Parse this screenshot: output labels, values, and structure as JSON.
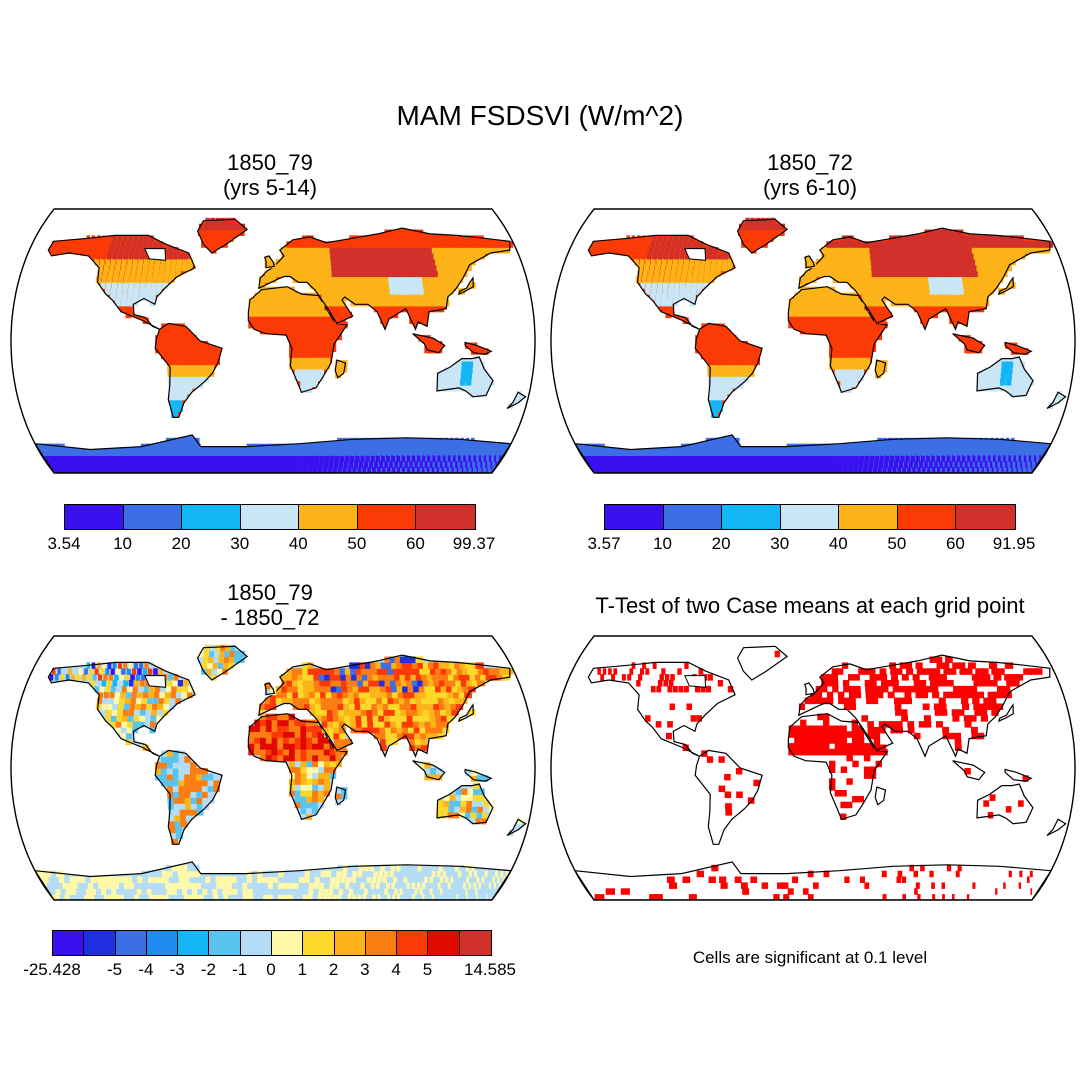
{
  "title": "MAM FSDSVI (W/m^2)",
  "panels": [
    {
      "title": "1850_79\n(yrs 5-14)",
      "kind": "field"
    },
    {
      "title": "1850_72\n(yrs 6-10)",
      "kind": "field"
    },
    {
      "title": "1850_79\n- 1850_72",
      "kind": "diff"
    },
    {
      "title": "T-Test of two Case means at each grid point",
      "kind": "ttest"
    }
  ],
  "colorbars": {
    "cb1": {
      "colors": [
        "#3a10f0",
        "#3c6fe6",
        "#14b6f5",
        "#c8e6f5",
        "#fcb418",
        "#fc3a06",
        "#d2302a"
      ],
      "labels": [
        "3.54",
        "10",
        "20",
        "30",
        "40",
        "50",
        "60",
        "99.37"
      ]
    },
    "cb2": {
      "colors": [
        "#3a10f0",
        "#3c6fe6",
        "#14b6f5",
        "#c8e6f5",
        "#fcb418",
        "#fc3a06",
        "#d2302a"
      ],
      "labels": [
        "3.57",
        "10",
        "20",
        "30",
        "40",
        "50",
        "60",
        "91.95"
      ]
    },
    "cb3": {
      "colors": [
        "#3a10f0",
        "#2030e0",
        "#3c6fe6",
        "#1e8cf0",
        "#14b6f5",
        "#5ac4f0",
        "#b4ddf5",
        "#fff8a8",
        "#fcd828",
        "#fcb418",
        "#fc7e12",
        "#fc3a06",
        "#e00a00",
        "#d2302a"
      ],
      "labels": [
        "-25.428",
        "-5",
        "-4",
        "-3",
        "-2",
        "-1",
        "0",
        "1",
        "2",
        "3",
        "4",
        "5",
        "14.585"
      ],
      "label_positions": [
        0,
        2,
        3,
        4,
        5,
        6,
        7,
        8,
        9,
        10,
        11,
        12,
        14
      ]
    }
  },
  "significance_color": "#ff0000",
  "note": "Cells are significant at 0.1 level"
}
